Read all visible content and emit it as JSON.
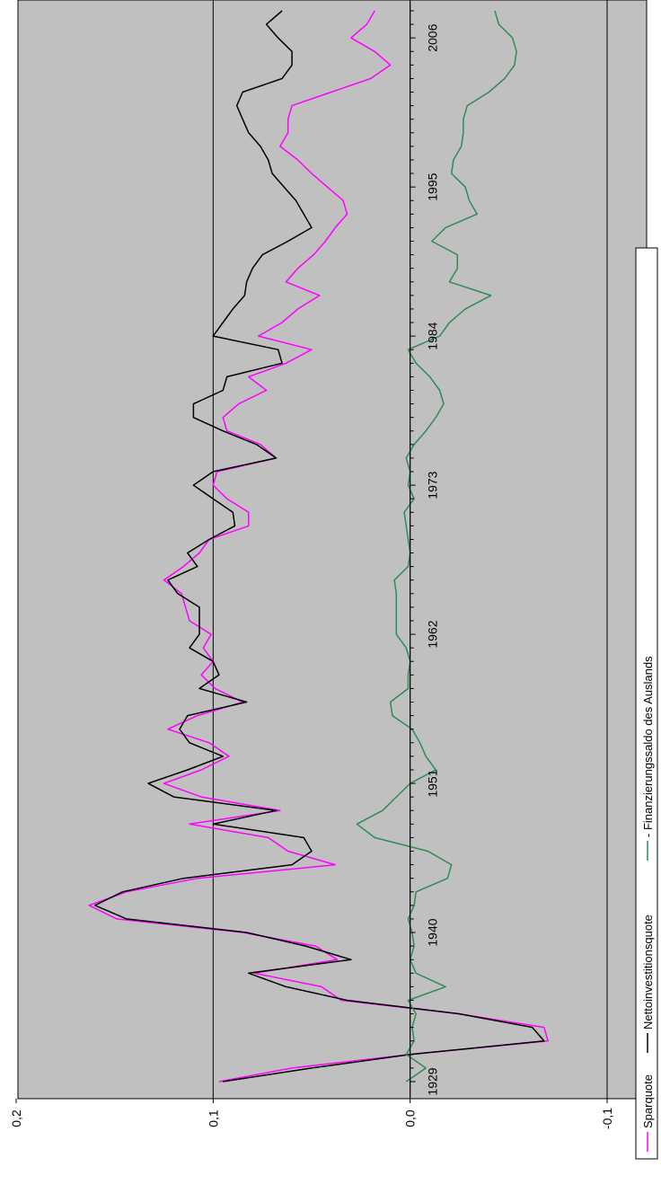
{
  "chart_data": {
    "type": "line",
    "orientation": "rotated-90-clockwise",
    "title": "",
    "xlabel": "",
    "ylabel": "",
    "x_tick_labels": [
      "1929",
      "1940",
      "1951",
      "1962",
      "1973",
      "1984",
      "1995",
      "2006"
    ],
    "x_tick_years": [
      1929,
      1940,
      1951,
      1962,
      1973,
      1984,
      1995,
      2006
    ],
    "xlim": [
      1929,
      2008
    ],
    "y_tick_labels": [
      "-0,1",
      "0,0",
      "0,1",
      "0,2"
    ],
    "y_tick_values": [
      -0.1,
      0.0,
      0.1,
      0.2
    ],
    "ylim": [
      -0.1,
      0.2
    ],
    "grid": "horizontal-major",
    "plot_background": "#c0c0c0",
    "series": [
      {
        "name": "Sparquote",
        "color": "#ff00ff",
        "legend_label": "Sparquote",
        "points": [
          [
            1929,
            0.097
          ],
          [
            1930,
            0.06
          ],
          [
            1931,
            0.0
          ],
          [
            1932,
            -0.07
          ],
          [
            1933,
            -0.068
          ],
          [
            1934,
            -0.025
          ],
          [
            1935,
            0.035
          ],
          [
            1936,
            0.045
          ],
          [
            1937,
            0.079
          ],
          [
            1938,
            0.037
          ],
          [
            1939,
            0.048
          ],
          [
            1940,
            0.085
          ],
          [
            1941,
            0.149
          ],
          [
            1942,
            0.163
          ],
          [
            1943,
            0.144
          ],
          [
            1944,
            0.108
          ],
          [
            1945,
            0.038
          ],
          [
            1946,
            0.062
          ],
          [
            1947,
            0.072
          ],
          [
            1948,
            0.112
          ],
          [
            1949,
            0.066
          ],
          [
            1950,
            0.106
          ],
          [
            1951,
            0.125
          ],
          [
            1952,
            0.106
          ],
          [
            1953,
            0.092
          ],
          [
            1954,
            0.102
          ],
          [
            1955,
            0.123
          ],
          [
            1956,
            0.108
          ],
          [
            1957,
            0.085
          ],
          [
            1958,
            0.099
          ],
          [
            1959,
            0.106
          ],
          [
            1960,
            0.1
          ],
          [
            1961,
            0.105
          ],
          [
            1962,
            0.101
          ],
          [
            1963,
            0.112
          ],
          [
            1964,
            0.114
          ],
          [
            1965,
            0.116
          ],
          [
            1966,
            0.125
          ],
          [
            1967,
            0.115
          ],
          [
            1968,
            0.107
          ],
          [
            1969,
            0.102
          ],
          [
            1970,
            0.082
          ],
          [
            1971,
            0.082
          ],
          [
            1972,
            0.093
          ],
          [
            1973,
            0.1
          ],
          [
            1974,
            0.098
          ],
          [
            1975,
            0.068
          ],
          [
            1976,
            0.076
          ],
          [
            1977,
            0.093
          ],
          [
            1978,
            0.095
          ],
          [
            1979,
            0.087
          ],
          [
            1980,
            0.073
          ],
          [
            1981,
            0.082
          ],
          [
            1982,
            0.063
          ],
          [
            1983,
            0.05
          ],
          [
            1984,
            0.077
          ],
          [
            1985,
            0.065
          ],
          [
            1986,
            0.057
          ],
          [
            1987,
            0.046
          ],
          [
            1988,
            0.063
          ],
          [
            1989,
            0.057
          ],
          [
            1990,
            0.049
          ],
          [
            1991,
            0.043
          ],
          [
            1992,
            0.038
          ],
          [
            1993,
            0.032
          ],
          [
            1994,
            0.034
          ],
          [
            1995,
            0.042
          ],
          [
            1996,
            0.05
          ],
          [
            1997,
            0.057
          ],
          [
            1998,
            0.066
          ],
          [
            1999,
            0.062
          ],
          [
            2000,
            0.062
          ],
          [
            2001,
            0.06
          ],
          [
            2002,
            0.04
          ],
          [
            2003,
            0.02
          ],
          [
            2004,
            0.01
          ],
          [
            2005,
            0.018
          ],
          [
            2006,
            0.03
          ],
          [
            2007,
            0.022
          ],
          [
            2008,
            0.018
          ]
        ]
      },
      {
        "name": "Nettoinvestitionsquote",
        "color": "#000000",
        "legend_label": "Nettoinvestitionsquote",
        "points": [
          [
            1929,
            0.095
          ],
          [
            1930,
            0.05
          ],
          [
            1931,
            0.0
          ],
          [
            1932,
            -0.068
          ],
          [
            1933,
            -0.062
          ],
          [
            1934,
            -0.025
          ],
          [
            1935,
            0.032
          ],
          [
            1936,
            0.063
          ],
          [
            1937,
            0.082
          ],
          [
            1938,
            0.03
          ],
          [
            1939,
            0.053
          ],
          [
            1940,
            0.083
          ],
          [
            1941,
            0.144
          ],
          [
            1942,
            0.16
          ],
          [
            1943,
            0.146
          ],
          [
            1944,
            0.115
          ],
          [
            1945,
            0.06
          ],
          [
            1946,
            0.05
          ],
          [
            1947,
            0.054
          ],
          [
            1948,
            0.1
          ],
          [
            1949,
            0.068
          ],
          [
            1950,
            0.12
          ],
          [
            1951,
            0.133
          ],
          [
            1952,
            0.113
          ],
          [
            1953,
            0.095
          ],
          [
            1954,
            0.112
          ],
          [
            1955,
            0.117
          ],
          [
            1956,
            0.113
          ],
          [
            1957,
            0.083
          ],
          [
            1958,
            0.107
          ],
          [
            1959,
            0.097
          ],
          [
            1960,
            0.1
          ],
          [
            1961,
            0.112
          ],
          [
            1962,
            0.107
          ],
          [
            1963,
            0.107
          ],
          [
            1964,
            0.107
          ],
          [
            1965,
            0.118
          ],
          [
            1966,
            0.123
          ],
          [
            1967,
            0.108
          ],
          [
            1968,
            0.113
          ],
          [
            1969,
            0.102
          ],
          [
            1970,
            0.089
          ],
          [
            1971,
            0.09
          ],
          [
            1972,
            0.1
          ],
          [
            1973,
            0.11
          ],
          [
            1974,
            0.1
          ],
          [
            1975,
            0.068
          ],
          [
            1976,
            0.078
          ],
          [
            1977,
            0.095
          ],
          [
            1978,
            0.11
          ],
          [
            1979,
            0.11
          ],
          [
            1980,
            0.095
          ],
          [
            1981,
            0.093
          ],
          [
            1982,
            0.065
          ],
          [
            1983,
            0.067
          ],
          [
            1984,
            0.1
          ],
          [
            1985,
            0.095
          ],
          [
            1986,
            0.09
          ],
          [
            1987,
            0.084
          ],
          [
            1988,
            0.083
          ],
          [
            1989,
            0.08
          ],
          [
            1990,
            0.075
          ],
          [
            1991,
            0.062
          ],
          [
            1992,
            0.05
          ],
          [
            1993,
            0.054
          ],
          [
            1994,
            0.058
          ],
          [
            1995,
            0.064
          ],
          [
            1996,
            0.07
          ],
          [
            1997,
            0.072
          ],
          [
            1998,
            0.076
          ],
          [
            1999,
            0.082
          ],
          [
            2000,
            0.085
          ],
          [
            2001,
            0.088
          ],
          [
            2002,
            0.085
          ],
          [
            2003,
            0.065
          ],
          [
            2004,
            0.06
          ],
          [
            2005,
            0.06
          ],
          [
            2006,
            0.067
          ],
          [
            2007,
            0.073
          ],
          [
            2008,
            0.065
          ]
        ]
      },
      {
        "name": "Finanzierungssaldo des Auslands",
        "color": "#2e8b57",
        "legend_label": "- Finanzierungssaldo des Auslands",
        "points": [
          [
            1929,
            0.002
          ],
          [
            1930,
            -0.008
          ],
          [
            1931,
            0.002
          ],
          [
            1932,
            -0.002
          ],
          [
            1933,
            -0.001
          ],
          [
            1934,
            -0.003
          ],
          [
            1935,
            0.001
          ],
          [
            1936,
            -0.018
          ],
          [
            1937,
            -0.003
          ],
          [
            1938,
            0.0
          ],
          [
            1939,
            -0.002
          ],
          [
            1940,
            -0.001
          ],
          [
            1941,
            0.001
          ],
          [
            1942,
            -0.002
          ],
          [
            1943,
            -0.003
          ],
          [
            1944,
            -0.019
          ],
          [
            1945,
            -0.021
          ],
          [
            1946,
            -0.009
          ],
          [
            1947,
            0.018
          ],
          [
            1948,
            0.027
          ],
          [
            1949,
            0.014
          ],
          [
            1950,
            0.007
          ],
          [
            1951,
            0.0
          ],
          [
            1952,
            -0.013
          ],
          [
            1953,
            -0.008
          ],
          [
            1954,
            -0.005
          ],
          [
            1955,
            -0.001
          ],
          [
            1956,
            0.009
          ],
          [
            1957,
            0.01
          ],
          [
            1958,
            0.001
          ],
          [
            1959,
            0.001
          ],
          [
            1960,
            0.0
          ],
          [
            1961,
            0.002
          ],
          [
            1962,
            0.007
          ],
          [
            1963,
            0.007
          ],
          [
            1964,
            0.007
          ],
          [
            1965,
            0.007
          ],
          [
            1966,
            0.008
          ],
          [
            1967,
            0.001
          ],
          [
            1968,
            0.0
          ],
          [
            1969,
            0.001
          ],
          [
            1970,
            0.002
          ],
          [
            1971,
            0.003
          ],
          [
            1972,
            -0.002
          ],
          [
            1973,
            0.001
          ],
          [
            1974,
            0.0
          ],
          [
            1975,
            0.002
          ],
          [
            1976,
            -0.002
          ],
          [
            1977,
            -0.008
          ],
          [
            1978,
            -0.013
          ],
          [
            1979,
            -0.017
          ],
          [
            1980,
            -0.015
          ],
          [
            1981,
            -0.01
          ],
          [
            1982,
            -0.003
          ],
          [
            1983,
            0.001
          ],
          [
            1984,
            -0.015
          ],
          [
            1985,
            -0.02
          ],
          [
            1986,
            -0.028
          ],
          [
            1987,
            -0.041
          ],
          [
            1988,
            -0.02
          ],
          [
            1989,
            -0.024
          ],
          [
            1990,
            -0.024
          ],
          [
            1991,
            -0.011
          ],
          [
            1992,
            -0.018
          ],
          [
            1993,
            -0.034
          ],
          [
            1994,
            -0.03
          ],
          [
            1995,
            -0.028
          ],
          [
            1996,
            -0.021
          ],
          [
            1997,
            -0.022
          ],
          [
            1998,
            -0.026
          ],
          [
            1999,
            -0.027
          ],
          [
            2000,
            -0.027
          ],
          [
            2001,
            -0.029
          ],
          [
            2002,
            -0.04
          ],
          [
            2003,
            -0.048
          ],
          [
            2004,
            -0.053
          ],
          [
            2005,
            -0.054
          ],
          [
            2006,
            -0.052
          ],
          [
            2007,
            -0.045
          ],
          [
            2008,
            -0.043
          ]
        ]
      }
    ],
    "legend": {
      "placement": "bottom",
      "items": [
        {
          "label": "Sparquote",
          "color": "#ff00ff"
        },
        {
          "label": "Nettoinvestitionsquote",
          "color": "#000000"
        },
        {
          "label": "- Finanzierungssaldo des Auslands",
          "color": "#2e8b57"
        }
      ]
    }
  }
}
